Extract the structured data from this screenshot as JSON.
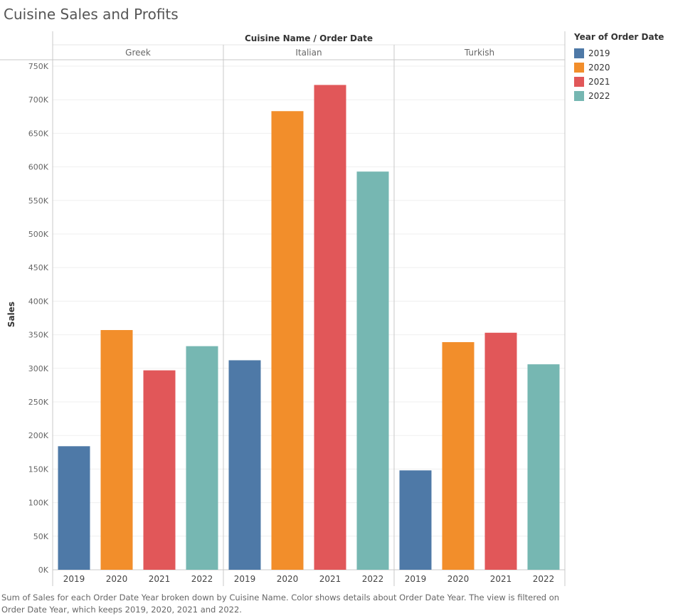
{
  "title": "Cuisine Sales and Profits",
  "caption": "Sum of Sales for each Order Date Year broken down by Cuisine Name.  Color shows details about Order Date Year. The view is filtered on Order Date Year, which keeps 2019, 2020, 2021 and 2022.",
  "legend": {
    "title": "Year of Order Date",
    "items": [
      {
        "label": "2019",
        "color": "#4e79a7"
      },
      {
        "label": "2020",
        "color": "#f28e2b"
      },
      {
        "label": "2021",
        "color": "#e15759"
      },
      {
        "label": "2022",
        "color": "#76b7b2"
      }
    ]
  },
  "chart_data": {
    "type": "bar",
    "column_header": "Cuisine Name  /  Order Date",
    "ylabel": "Sales",
    "ylim": [
      0,
      765000
    ],
    "y_ticks": [
      0,
      50000,
      100000,
      150000,
      200000,
      250000,
      300000,
      350000,
      400000,
      450000,
      500000,
      550000,
      600000,
      650000,
      700000,
      750000
    ],
    "y_tick_labels": [
      "0K",
      "50K",
      "100K",
      "150K",
      "200K",
      "250K",
      "300K",
      "350K",
      "400K",
      "450K",
      "500K",
      "550K",
      "600K",
      "650K",
      "700K",
      "750K"
    ],
    "grid": true,
    "legend_position": "right",
    "categories": [
      "2019",
      "2020",
      "2021",
      "2022"
    ],
    "panels": [
      {
        "name": "Greek",
        "values": [
          184000,
          357000,
          297000,
          333000
        ]
      },
      {
        "name": "Italian",
        "values": [
          312000,
          683000,
          722000,
          593000
        ]
      },
      {
        "name": "Turkish",
        "values": [
          148000,
          339000,
          353000,
          306000
        ]
      }
    ]
  }
}
